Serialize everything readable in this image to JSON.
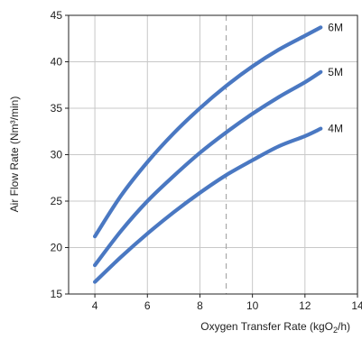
{
  "chart_data": {
    "type": "line",
    "xlabel_main": "Oxygen Transfer Rate (kgO",
    "xlabel_sub": "2",
    "xlabel_end": "/h)",
    "ylabel": "Air Flow Rate (Nm³/min)",
    "xlim": [
      3,
      14
    ],
    "ylim": [
      15,
      45
    ],
    "x_ticks": [
      4,
      6,
      8,
      10,
      12,
      14
    ],
    "y_ticks": [
      15,
      20,
      25,
      30,
      35,
      40,
      45
    ],
    "grid": true,
    "reference_line_x": 9,
    "series": [
      {
        "name": "6M",
        "color": "#4a78c2",
        "points": [
          [
            4,
            21.2
          ],
          [
            5,
            25.6
          ],
          [
            6,
            29.2
          ],
          [
            7,
            32.3
          ],
          [
            8,
            35.0
          ],
          [
            9,
            37.4
          ],
          [
            10,
            39.5
          ],
          [
            11,
            41.3
          ],
          [
            12,
            42.8
          ],
          [
            12.6,
            43.7
          ]
        ]
      },
      {
        "name": "5M",
        "color": "#4a78c2",
        "points": [
          [
            4,
            18.1
          ],
          [
            5,
            21.8
          ],
          [
            6,
            25.0
          ],
          [
            7,
            27.7
          ],
          [
            8,
            30.2
          ],
          [
            9,
            32.4
          ],
          [
            10,
            34.4
          ],
          [
            11,
            36.2
          ],
          [
            12,
            37.8
          ],
          [
            12.6,
            38.9
          ]
        ]
      },
      {
        "name": "4M",
        "color": "#4a78c2",
        "points": [
          [
            4,
            16.3
          ],
          [
            5,
            19.0
          ],
          [
            6,
            21.5
          ],
          [
            7,
            23.8
          ],
          [
            8,
            25.9
          ],
          [
            9,
            27.8
          ],
          [
            10,
            29.4
          ],
          [
            11,
            30.9
          ],
          [
            12,
            32.0
          ],
          [
            12.6,
            32.8
          ]
        ]
      }
    ]
  }
}
